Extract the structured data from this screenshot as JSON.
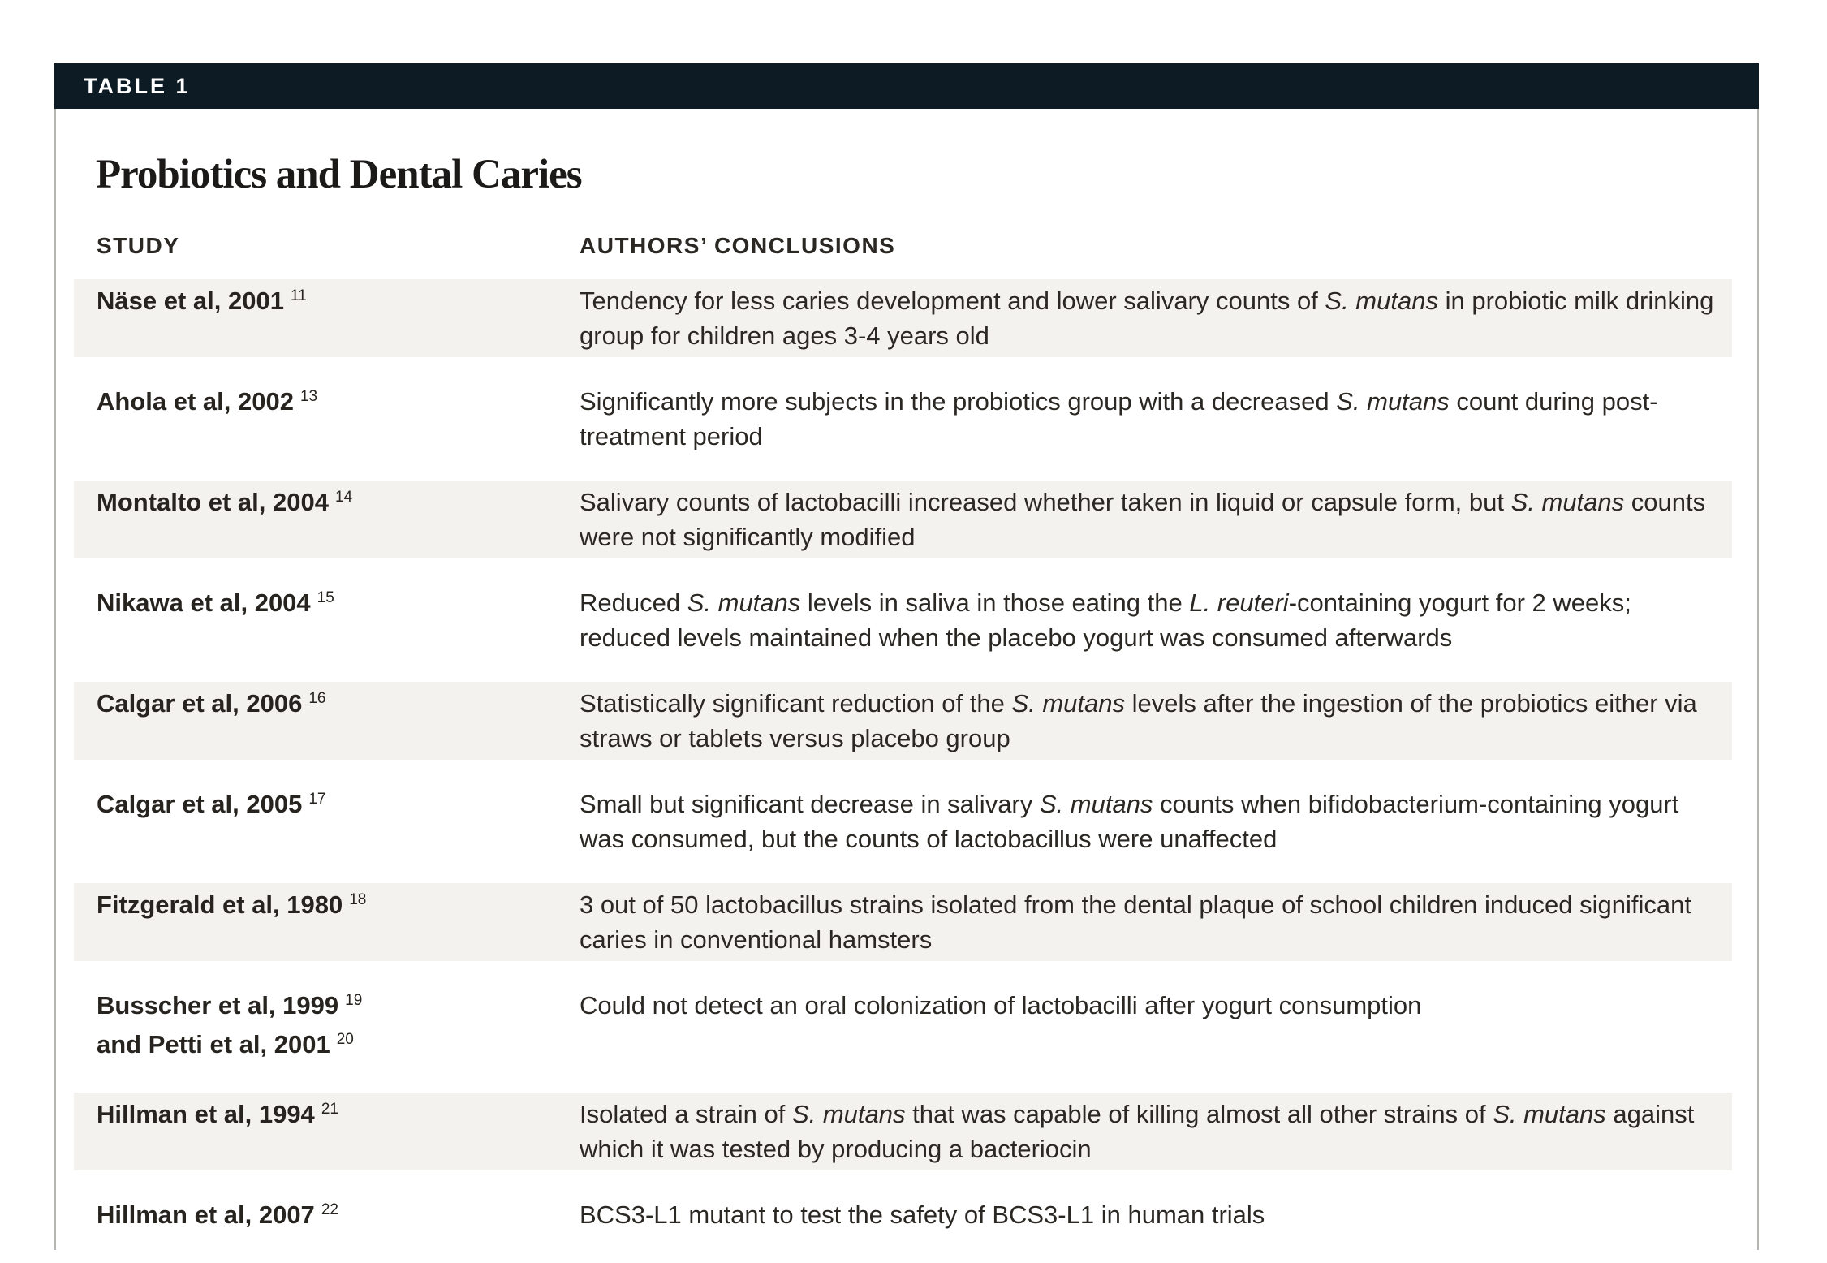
{
  "table": {
    "tag": "TABLE 1",
    "title": "Probiotics and Dental Caries",
    "columns": {
      "study": "STUDY",
      "conclusions": "AUTHORS’ CONCLUSIONS"
    },
    "rows": [
      {
        "shaded": true,
        "study": [
          {
            "text": "Näse et al, 2001",
            "ref": "11"
          }
        ],
        "conclusion": [
          {
            "t": "Tendency for less caries development and lower salivary counts of "
          },
          {
            "t": "S. mutans",
            "i": true
          },
          {
            "t": " in probiotic milk drinking group for children ages 3-4 years old"
          }
        ]
      },
      {
        "shaded": false,
        "study": [
          {
            "text": "Ahola et al, 2002",
            "ref": "13"
          }
        ],
        "conclusion": [
          {
            "t": "Significantly more subjects in the probiotics group with a decreased "
          },
          {
            "t": "S. mutans",
            "i": true
          },
          {
            "t": " count during post-treatment period"
          }
        ]
      },
      {
        "shaded": true,
        "study": [
          {
            "text": "Montalto et al, 2004",
            "ref": "14"
          }
        ],
        "conclusion": [
          {
            "t": "Salivary counts of lactobacilli increased whether taken in liquid or capsule form, but "
          },
          {
            "t": "S. mutans",
            "i": true
          },
          {
            "t": " counts were not significantly modified"
          }
        ]
      },
      {
        "shaded": false,
        "study": [
          {
            "text": "Nikawa et al, 2004",
            "ref": "15"
          }
        ],
        "conclusion": [
          {
            "t": "Reduced "
          },
          {
            "t": "S. mutans",
            "i": true
          },
          {
            "t": " levels in saliva in those eating the "
          },
          {
            "t": "L. reuteri",
            "i": true
          },
          {
            "t": "-containing yogurt for 2 weeks; reduced levels maintained when the placebo yogurt was consumed afterwards"
          }
        ]
      },
      {
        "shaded": true,
        "study": [
          {
            "text": "Calgar et al, 2006",
            "ref": "16"
          }
        ],
        "conclusion": [
          {
            "t": "Statistically significant reduction of the "
          },
          {
            "t": "S. mutans",
            "i": true
          },
          {
            "t": " levels after the ingestion of the probiotics either via straws or tablets versus placebo group"
          }
        ]
      },
      {
        "shaded": false,
        "study": [
          {
            "text": "Calgar et al, 2005",
            "ref": "17"
          }
        ],
        "conclusion": [
          {
            "t": "Small but significant decrease in salivary "
          },
          {
            "t": "S. mutans",
            "i": true
          },
          {
            "t": " counts when bifidobacterium-containing yogurt was consumed, but the counts of lactobacillus were unaffected"
          }
        ]
      },
      {
        "shaded": true,
        "study": [
          {
            "text": "Fitzgerald et al, 1980",
            "ref": "18"
          }
        ],
        "conclusion": [
          {
            "t": "3 out of 50 lactobacillus strains isolated from the dental plaque of school children induced significant caries in conventional hamsters"
          }
        ]
      },
      {
        "shaded": false,
        "study": [
          {
            "text": "Busscher et al, 1999",
            "ref": "19"
          },
          {
            "text": "and Petti et al, 2001",
            "ref": "20"
          }
        ],
        "conclusion": [
          {
            "t": "Could not detect an oral colonization of lactobacilli after yogurt consumption"
          }
        ]
      },
      {
        "shaded": true,
        "study": [
          {
            "text": "Hillman et al, 1994",
            "ref": "21"
          }
        ],
        "conclusion": [
          {
            "t": "Isolated a strain of "
          },
          {
            "t": "S. mutans",
            "i": true
          },
          {
            "t": " that was capable of killing almost all other strains of "
          },
          {
            "t": "S. mutans",
            "i": true
          },
          {
            "t": " against which it was tested by producing a bacteriocin"
          }
        ]
      },
      {
        "shaded": false,
        "study": [
          {
            "text": "Hillman et al, 2007",
            "ref": "22"
          }
        ],
        "conclusion": [
          {
            "t": "BCS3-L1 mutant to test the safety of BCS3-L1 in human trials"
          }
        ]
      }
    ]
  },
  "colors": {
    "header_bar_background": "#0d1b25",
    "header_bar_text": "#ffffff",
    "row_stripe": "#f3f2ef",
    "body_text": "#2b2824",
    "card_border": "#b7b5b2",
    "page_background": "#ffffff"
  }
}
